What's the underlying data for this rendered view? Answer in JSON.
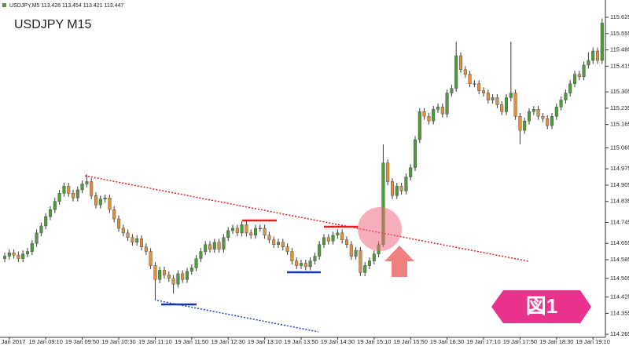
{
  "header": "USDJPY,M5  113.426 113.454 113.421 113.447",
  "badge": "図1",
  "chart_data": {
    "type": "candlestick",
    "title": "USDJPY M15",
    "up_color": "#4f9a3b",
    "down_color": "#e0913f",
    "wick_color": "#3a3a3a",
    "ylim": [
      114.252,
      115.699
    ],
    "yticks": [
      115.625,
      115.555,
      115.485,
      115.415,
      115.305,
      115.235,
      115.165,
      115.065,
      114.975,
      114.905,
      114.835,
      114.745,
      114.655,
      114.585,
      114.505,
      114.425,
      114.355,
      114.265
    ],
    "categories": [
      null,
      "19 Jan 2017",
      null,
      null,
      null,
      null,
      null,
      null,
      null,
      "19 Jan 09:10",
      null,
      null,
      null,
      null,
      null,
      null,
      null,
      "19 Jan 09:50",
      null,
      null,
      null,
      null,
      null,
      null,
      null,
      "19 Jan 10:30",
      null,
      null,
      null,
      null,
      null,
      null,
      null,
      "19 Jan 11:10",
      null,
      null,
      null,
      null,
      null,
      null,
      null,
      "19 Jan 11:50",
      null,
      null,
      null,
      null,
      null,
      null,
      null,
      "19 Jan 12:30",
      null,
      null,
      null,
      null,
      null,
      null,
      null,
      "19 Jan 13:10",
      null,
      null,
      null,
      null,
      null,
      null,
      null,
      "19 Jan 13:50",
      null,
      null,
      null,
      null,
      null,
      null,
      null,
      "19 Jan 14:30",
      null,
      null,
      null,
      null,
      null,
      null,
      null,
      "19 Jan 15:10",
      null,
      null,
      null,
      null,
      null,
      null,
      null,
      "19 Jan 15:50",
      null,
      null,
      null,
      null,
      null,
      null,
      null,
      "19 Jan 16:30",
      null,
      null,
      null,
      null,
      null,
      null,
      null,
      "19 Jan 17:10",
      null,
      null,
      null,
      null,
      null,
      null,
      null,
      "19 Jan 17:50",
      null,
      null,
      null,
      null,
      null,
      null,
      null,
      "19 Jan 18:30",
      null,
      null,
      null,
      null,
      null,
      null,
      null,
      "19 Jan 19:10",
      null,
      null
    ],
    "candles": [
      [
        114.59,
        114.615,
        114.575,
        114.6
      ],
      [
        114.6,
        114.63,
        114.585,
        114.615
      ],
      [
        114.615,
        114.63,
        114.59,
        114.605
      ],
      [
        114.605,
        114.62,
        114.575,
        114.59
      ],
      [
        114.59,
        114.625,
        114.575,
        114.61
      ],
      [
        114.61,
        114.635,
        114.595,
        114.62
      ],
      [
        114.62,
        114.67,
        114.605,
        114.655
      ],
      [
        114.655,
        114.715,
        114.64,
        114.7
      ],
      [
        114.7,
        114.745,
        114.685,
        114.73
      ],
      [
        114.73,
        114.785,
        114.715,
        114.77
      ],
      [
        114.77,
        114.815,
        114.755,
        114.8
      ],
      [
        114.8,
        114.85,
        114.785,
        114.835
      ],
      [
        114.835,
        114.885,
        114.82,
        114.87
      ],
      [
        114.87,
        114.915,
        114.855,
        114.9
      ],
      [
        114.9,
        114.915,
        114.855,
        114.87
      ],
      [
        114.87,
        114.885,
        114.835,
        114.85
      ],
      [
        114.85,
        114.9,
        114.835,
        114.885
      ],
      [
        114.885,
        114.925,
        114.87,
        114.91
      ],
      [
        114.91,
        114.95,
        114.895,
        114.92
      ],
      [
        114.92,
        114.935,
        114.845,
        114.86
      ],
      [
        114.86,
        114.875,
        114.805,
        114.82
      ],
      [
        114.82,
        114.86,
        114.805,
        114.845
      ],
      [
        114.845,
        114.865,
        114.83,
        114.85
      ],
      [
        114.85,
        114.865,
        114.785,
        114.8
      ],
      [
        114.8,
        114.815,
        114.745,
        114.76
      ],
      [
        114.76,
        114.775,
        114.705,
        114.72
      ],
      [
        114.72,
        114.735,
        114.685,
        114.7
      ],
      [
        114.7,
        114.715,
        114.665,
        114.68
      ],
      [
        114.68,
        114.695,
        114.645,
        114.66
      ],
      [
        114.66,
        114.69,
        114.645,
        114.675
      ],
      [
        114.675,
        114.69,
        114.625,
        114.64
      ],
      [
        114.64,
        114.655,
        114.605,
        114.62
      ],
      [
        114.62,
        114.635,
        114.545,
        114.56
      ],
      [
        114.56,
        114.575,
        114.41,
        114.5
      ],
      [
        114.5,
        114.555,
        114.485,
        114.54
      ],
      [
        114.54,
        114.555,
        114.505,
        114.52
      ],
      [
        114.52,
        114.535,
        114.49,
        114.505
      ],
      [
        114.505,
        114.52,
        114.44,
        114.48
      ],
      [
        114.48,
        114.54,
        114.465,
        114.525
      ],
      [
        114.525,
        114.54,
        114.485,
        114.5
      ],
      [
        114.5,
        114.55,
        114.485,
        114.535
      ],
      [
        114.535,
        114.565,
        114.52,
        114.55
      ],
      [
        114.55,
        114.605,
        114.535,
        114.59
      ],
      [
        114.59,
        114.635,
        114.575,
        114.62
      ],
      [
        114.62,
        114.665,
        114.605,
        114.65
      ],
      [
        114.65,
        114.665,
        114.615,
        114.63
      ],
      [
        114.63,
        114.675,
        114.615,
        114.66
      ],
      [
        114.66,
        114.675,
        114.615,
        114.63
      ],
      [
        114.63,
        114.695,
        114.615,
        114.68
      ],
      [
        114.68,
        114.725,
        114.665,
        114.71
      ],
      [
        114.71,
        114.735,
        114.695,
        114.72
      ],
      [
        114.72,
        114.735,
        114.685,
        114.7
      ],
      [
        114.7,
        114.75,
        114.685,
        114.735
      ],
      [
        114.735,
        114.75,
        114.685,
        114.7
      ],
      [
        114.7,
        114.715,
        114.675,
        114.69
      ],
      [
        114.69,
        114.735,
        114.675,
        114.72
      ],
      [
        114.72,
        114.735,
        114.705,
        114.72
      ],
      [
        114.72,
        114.735,
        114.675,
        114.69
      ],
      [
        114.69,
        114.705,
        114.655,
        114.67
      ],
      [
        114.67,
        114.685,
        114.635,
        114.65
      ],
      [
        114.65,
        114.675,
        114.635,
        114.66
      ],
      [
        114.66,
        114.675,
        114.625,
        114.64
      ],
      [
        114.64,
        114.655,
        114.605,
        114.62
      ],
      [
        114.62,
        114.635,
        114.565,
        114.58
      ],
      [
        114.58,
        114.595,
        114.545,
        114.56
      ],
      [
        114.56,
        114.585,
        114.545,
        114.57
      ],
      [
        114.57,
        114.585,
        114.54,
        114.555
      ],
      [
        114.555,
        114.595,
        114.54,
        114.58
      ],
      [
        114.58,
        114.615,
        114.565,
        114.6
      ],
      [
        114.6,
        114.665,
        114.585,
        114.65
      ],
      [
        114.65,
        114.695,
        114.635,
        114.68
      ],
      [
        114.68,
        114.695,
        114.65,
        114.665
      ],
      [
        114.665,
        114.705,
        114.65,
        114.69
      ],
      [
        114.69,
        114.715,
        114.675,
        114.7
      ],
      [
        114.7,
        114.715,
        114.655,
        114.67
      ],
      [
        114.67,
        114.685,
        114.635,
        114.65
      ],
      [
        114.65,
        114.665,
        114.585,
        114.6
      ],
      [
        114.6,
        114.64,
        114.585,
        114.625
      ],
      [
        114.625,
        114.64,
        114.515,
        114.53
      ],
      [
        114.53,
        114.575,
        114.515,
        114.56
      ],
      [
        114.56,
        114.595,
        114.545,
        114.58
      ],
      [
        114.58,
        114.625,
        114.565,
        114.61
      ],
      [
        114.61,
        114.665,
        114.595,
        114.65
      ],
      [
        114.65,
        115.08,
        114.64,
        115.0
      ],
      [
        115.0,
        115.015,
        114.905,
        114.92
      ],
      [
        114.92,
        114.935,
        114.845,
        114.86
      ],
      [
        114.86,
        114.915,
        114.845,
        114.9
      ],
      [
        114.9,
        114.915,
        114.865,
        114.88
      ],
      [
        114.88,
        114.955,
        114.865,
        114.94
      ],
      [
        114.94,
        114.995,
        114.925,
        114.98
      ],
      [
        114.98,
        115.115,
        114.965,
        115.1
      ],
      [
        115.1,
        115.235,
        115.085,
        115.22
      ],
      [
        115.22,
        115.235,
        115.185,
        115.2
      ],
      [
        115.2,
        115.215,
        115.165,
        115.18
      ],
      [
        115.18,
        115.245,
        115.165,
        115.23
      ],
      [
        115.23,
        115.255,
        115.215,
        115.24
      ],
      [
        115.24,
        115.255,
        115.195,
        115.21
      ],
      [
        115.21,
        115.315,
        115.195,
        115.3
      ],
      [
        115.3,
        115.335,
        115.285,
        115.32
      ],
      [
        115.32,
        115.52,
        115.305,
        115.46
      ],
      [
        115.46,
        115.475,
        115.385,
        115.4
      ],
      [
        115.4,
        115.415,
        115.365,
        115.38
      ],
      [
        115.38,
        115.395,
        115.325,
        115.34
      ],
      [
        115.34,
        115.355,
        115.325,
        115.34
      ],
      [
        115.34,
        115.355,
        115.295,
        115.31
      ],
      [
        115.31,
        115.325,
        115.285,
        115.3
      ],
      [
        115.3,
        115.315,
        115.255,
        115.27
      ],
      [
        115.27,
        115.295,
        115.255,
        115.28
      ],
      [
        115.28,
        115.295,
        115.235,
        115.25
      ],
      [
        115.25,
        115.265,
        115.205,
        115.22
      ],
      [
        115.22,
        115.295,
        115.205,
        115.28
      ],
      [
        115.28,
        115.52,
        115.265,
        115.3
      ],
      [
        115.3,
        115.315,
        115.185,
        115.2
      ],
      [
        115.2,
        115.215,
        115.08,
        115.14
      ],
      [
        115.14,
        115.195,
        115.125,
        115.18
      ],
      [
        115.18,
        115.235,
        115.165,
        115.22
      ],
      [
        115.22,
        115.245,
        115.205,
        115.23
      ],
      [
        115.23,
        115.245,
        115.185,
        115.2
      ],
      [
        115.2,
        115.215,
        115.175,
        115.19
      ],
      [
        115.19,
        115.205,
        115.145,
        115.16
      ],
      [
        115.16,
        115.215,
        115.145,
        115.2
      ],
      [
        115.2,
        115.255,
        115.185,
        115.24
      ],
      [
        115.24,
        115.285,
        115.225,
        115.27
      ],
      [
        115.27,
        115.315,
        115.255,
        115.3
      ],
      [
        115.3,
        115.355,
        115.285,
        115.34
      ],
      [
        115.34,
        115.395,
        115.325,
        115.38
      ],
      [
        115.38,
        115.395,
        115.355,
        115.37
      ],
      [
        115.37,
        115.435,
        115.355,
        115.42
      ],
      [
        115.42,
        115.475,
        115.405,
        115.44
      ],
      [
        115.44,
        115.495,
        115.425,
        115.48
      ],
      [
        115.48,
        115.495,
        115.425,
        115.44
      ],
      [
        115.44,
        115.62,
        115.425,
        115.6
      ]
    ]
  }
}
